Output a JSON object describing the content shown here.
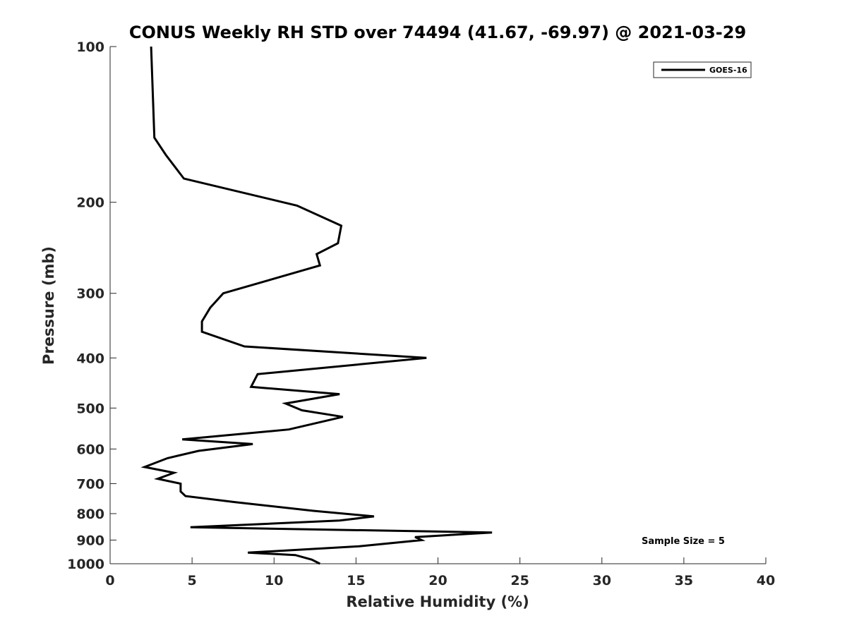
{
  "chart_data": {
    "type": "line",
    "title": "CONUS Weekly RH STD over 74494 (41.67, -69.97) @ 2021-03-29",
    "xlabel": "Relative Humidity (%)",
    "ylabel": "Pressure (mb)",
    "xlim": [
      0,
      40
    ],
    "ylim": [
      100,
      1000
    ],
    "yscale": "log",
    "y_reversed": true,
    "grid": false,
    "xticks": [
      0,
      5,
      10,
      15,
      20,
      25,
      30,
      35,
      40
    ],
    "yticks": [
      100,
      200,
      300,
      400,
      500,
      600,
      700,
      800,
      900,
      1000
    ],
    "legend_position": "top-right",
    "annotation": "Sample Size = 5",
    "series": [
      {
        "name": "GOES-16",
        "color": "#000000",
        "x": [
          2.5,
          2.7,
          3.4,
          4.5,
          11.4,
          14.1,
          13.9,
          12.6,
          12.8,
          6.9,
          6.1,
          5.6,
          5.6,
          8.2,
          19.3,
          9.0,
          8.6,
          14.0,
          10.7,
          11.7,
          14.2,
          10.9,
          4.4,
          8.7,
          5.4,
          3.5,
          2.1,
          3.9,
          2.9,
          4.3,
          4.3,
          4.6,
          7.6,
          12.4,
          16.1,
          14.0,
          4.9,
          23.3,
          18.6,
          19.0,
          15.2,
          8.4,
          11.3,
          12.3,
          12.8
        ],
        "y": [
          100,
          150,
          162,
          180,
          203,
          222,
          240,
          252,
          265,
          300,
          320,
          340,
          356,
          380,
          400,
          430,
          455,
          470,
          490,
          505,
          520,
          550,
          575,
          587,
          605,
          625,
          650,
          667,
          685,
          700,
          725,
          740,
          760,
          790,
          810,
          825,
          850,
          870,
          888,
          900,
          925,
          952,
          962,
          982,
          1000
        ]
      }
    ]
  }
}
